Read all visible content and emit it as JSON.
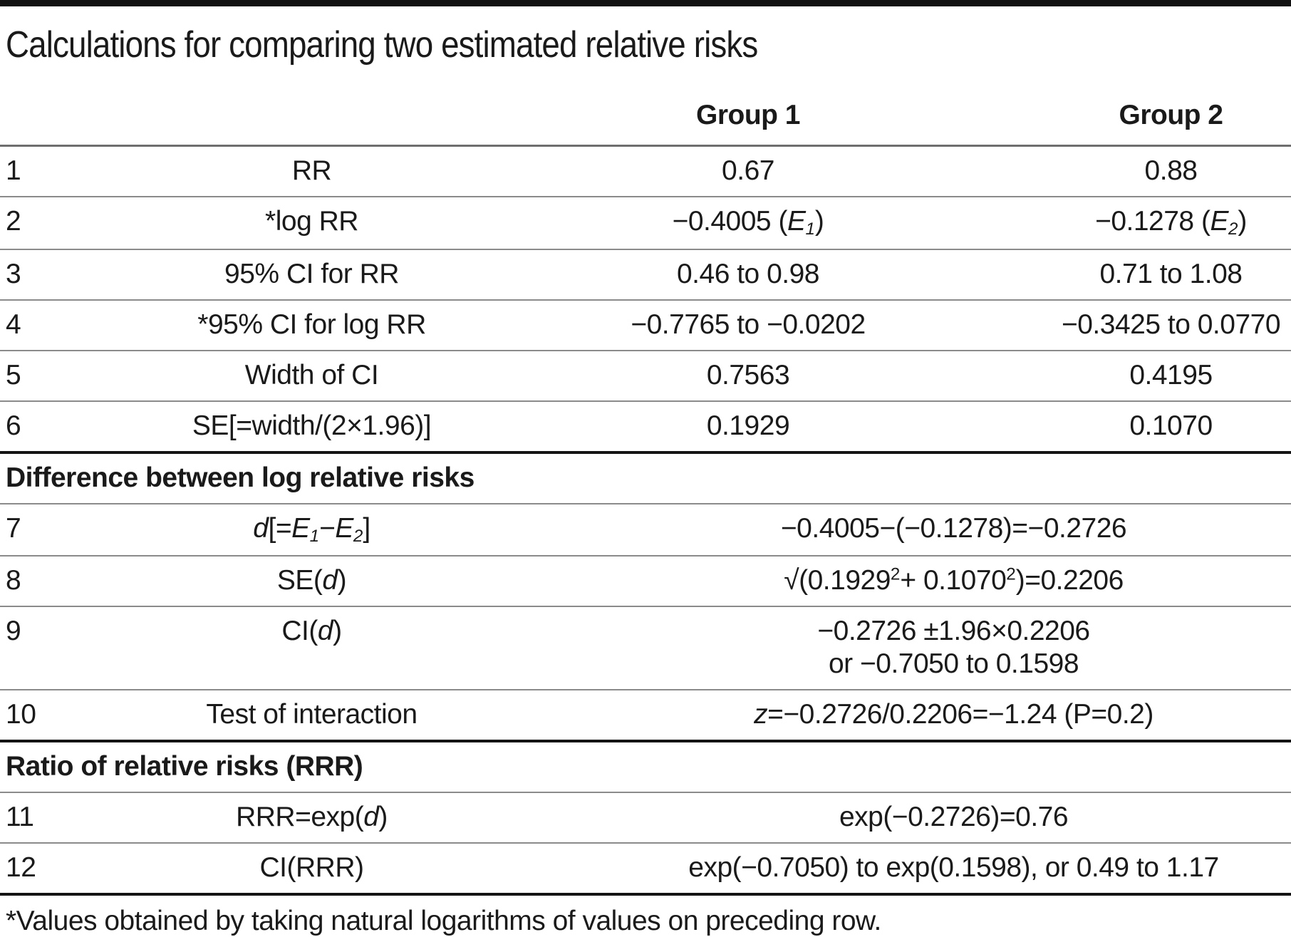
{
  "page": {
    "title": "Calculations for comparing two estimated relative risks",
    "footnote": "*Values obtained by taking natural logarithms of values on preceding row."
  },
  "colors": {
    "text": "#1a1a1a",
    "thin_rule": "#8b8b8b",
    "thick_rule": "#141414",
    "top_bar": "#111111",
    "background": "#ffffff"
  },
  "table": {
    "headers": {
      "group1": "Group 1",
      "group2": "Group 2"
    },
    "rows": [
      {
        "num": "1",
        "label": "RR",
        "g1": "0.67",
        "g2": "0.88"
      },
      {
        "num": "2",
        "label": "*log RR",
        "g1": "−0.4005 (<i>E<sub>1</sub></i>)",
        "g2": "−0.1278 (<i>E<sub>2</sub></i>)"
      },
      {
        "num": "3",
        "label": "95% CI for RR",
        "g1": "0.46 to 0.98",
        "g2": "0.71 to 1.08"
      },
      {
        "num": "4",
        "label": "*95% CI for log RR",
        "g1": "−0.7765 to −0.0202",
        "g2": "−0.3425 to 0.0770"
      },
      {
        "num": "5",
        "label": "Width of CI",
        "g1": "0.7563",
        "g2": "0.4195"
      },
      {
        "num": "6",
        "label": "SE[=width/(2×1.96)]",
        "g1": "0.1929",
        "g2": "0.1070"
      },
      {
        "section": "Difference between log relative risks"
      },
      {
        "num": "7",
        "label": "<i>d</i>[=<i>E<sub>1</sub></i>−<i>E<sub>2</sub></i>]",
        "value": "−0.4005−(−0.1278)=−0.2726"
      },
      {
        "num": "8",
        "label": "SE(<i>d</i>)",
        "value": "√(0.1929<sup>2</sup>+ 0.1070<sup>2</sup>)=0.2206"
      },
      {
        "num": "9",
        "label": "CI(<i>d</i>)",
        "value": "−0.2726 ±1.96×0.2206<br>or −0.7050 to 0.1598"
      },
      {
        "num": "10",
        "label": "Test of interaction",
        "value": "<i>z</i>=−0.2726/0.2206=−1.24 (P=0.2)"
      },
      {
        "section": "Ratio of relative risks (RRR)"
      },
      {
        "num": "11",
        "label": "RRR=exp(<i>d</i>)",
        "value": "exp(−0.2726)=0.76"
      },
      {
        "num": "12",
        "label": "CI(RRR)",
        "value": "exp(−0.7050) to exp(0.1598), or 0.49 to 1.17"
      }
    ]
  },
  "chart_data": {
    "type": "table",
    "title": "Calculations for comparing two estimated relative risks",
    "columns": [
      "Row",
      "Item",
      "Group 1",
      "Group 2"
    ],
    "rows": [
      [
        "1",
        "RR",
        "0.67",
        "0.88"
      ],
      [
        "2",
        "*log RR",
        "−0.4005 (E₁)",
        "−0.1278 (E₂)"
      ],
      [
        "3",
        "95% CI for RR",
        "0.46 to 0.98",
        "0.71 to 1.08"
      ],
      [
        "4",
        "*95% CI for log RR",
        "−0.7765 to −0.0202",
        "−0.3425 to 0.0770"
      ],
      [
        "5",
        "Width of CI",
        "0.7563",
        "0.4195"
      ],
      [
        "6",
        "SE[=width/(2×1.96)]",
        "0.1929",
        "0.1070"
      ],
      [
        "section",
        "Difference between log relative risks",
        "",
        ""
      ],
      [
        "7",
        "d[=E₁−E₂]",
        "−0.4005−(−0.1278)=−0.2726",
        ""
      ],
      [
        "8",
        "SE(d)",
        "√(0.1929²+ 0.1070²)=0.2206",
        ""
      ],
      [
        "9",
        "CI(d)",
        "−0.2726 ±1.96×0.2206 or −0.7050 to 0.1598",
        ""
      ],
      [
        "10",
        "Test of interaction",
        "z=−0.2726/0.2206=−1.24 (P=0.2)",
        ""
      ],
      [
        "section",
        "Ratio of relative risks (RRR)",
        "",
        ""
      ],
      [
        "11",
        "RRR=exp(d)",
        "exp(−0.2726)=0.76",
        ""
      ],
      [
        "12",
        "CI(RRR)",
        "exp(−0.7050) to exp(0.1598), or 0.49 to 1.17",
        ""
      ]
    ],
    "footnote": "*Values obtained by taking natural logarithms of values on preceding row."
  }
}
